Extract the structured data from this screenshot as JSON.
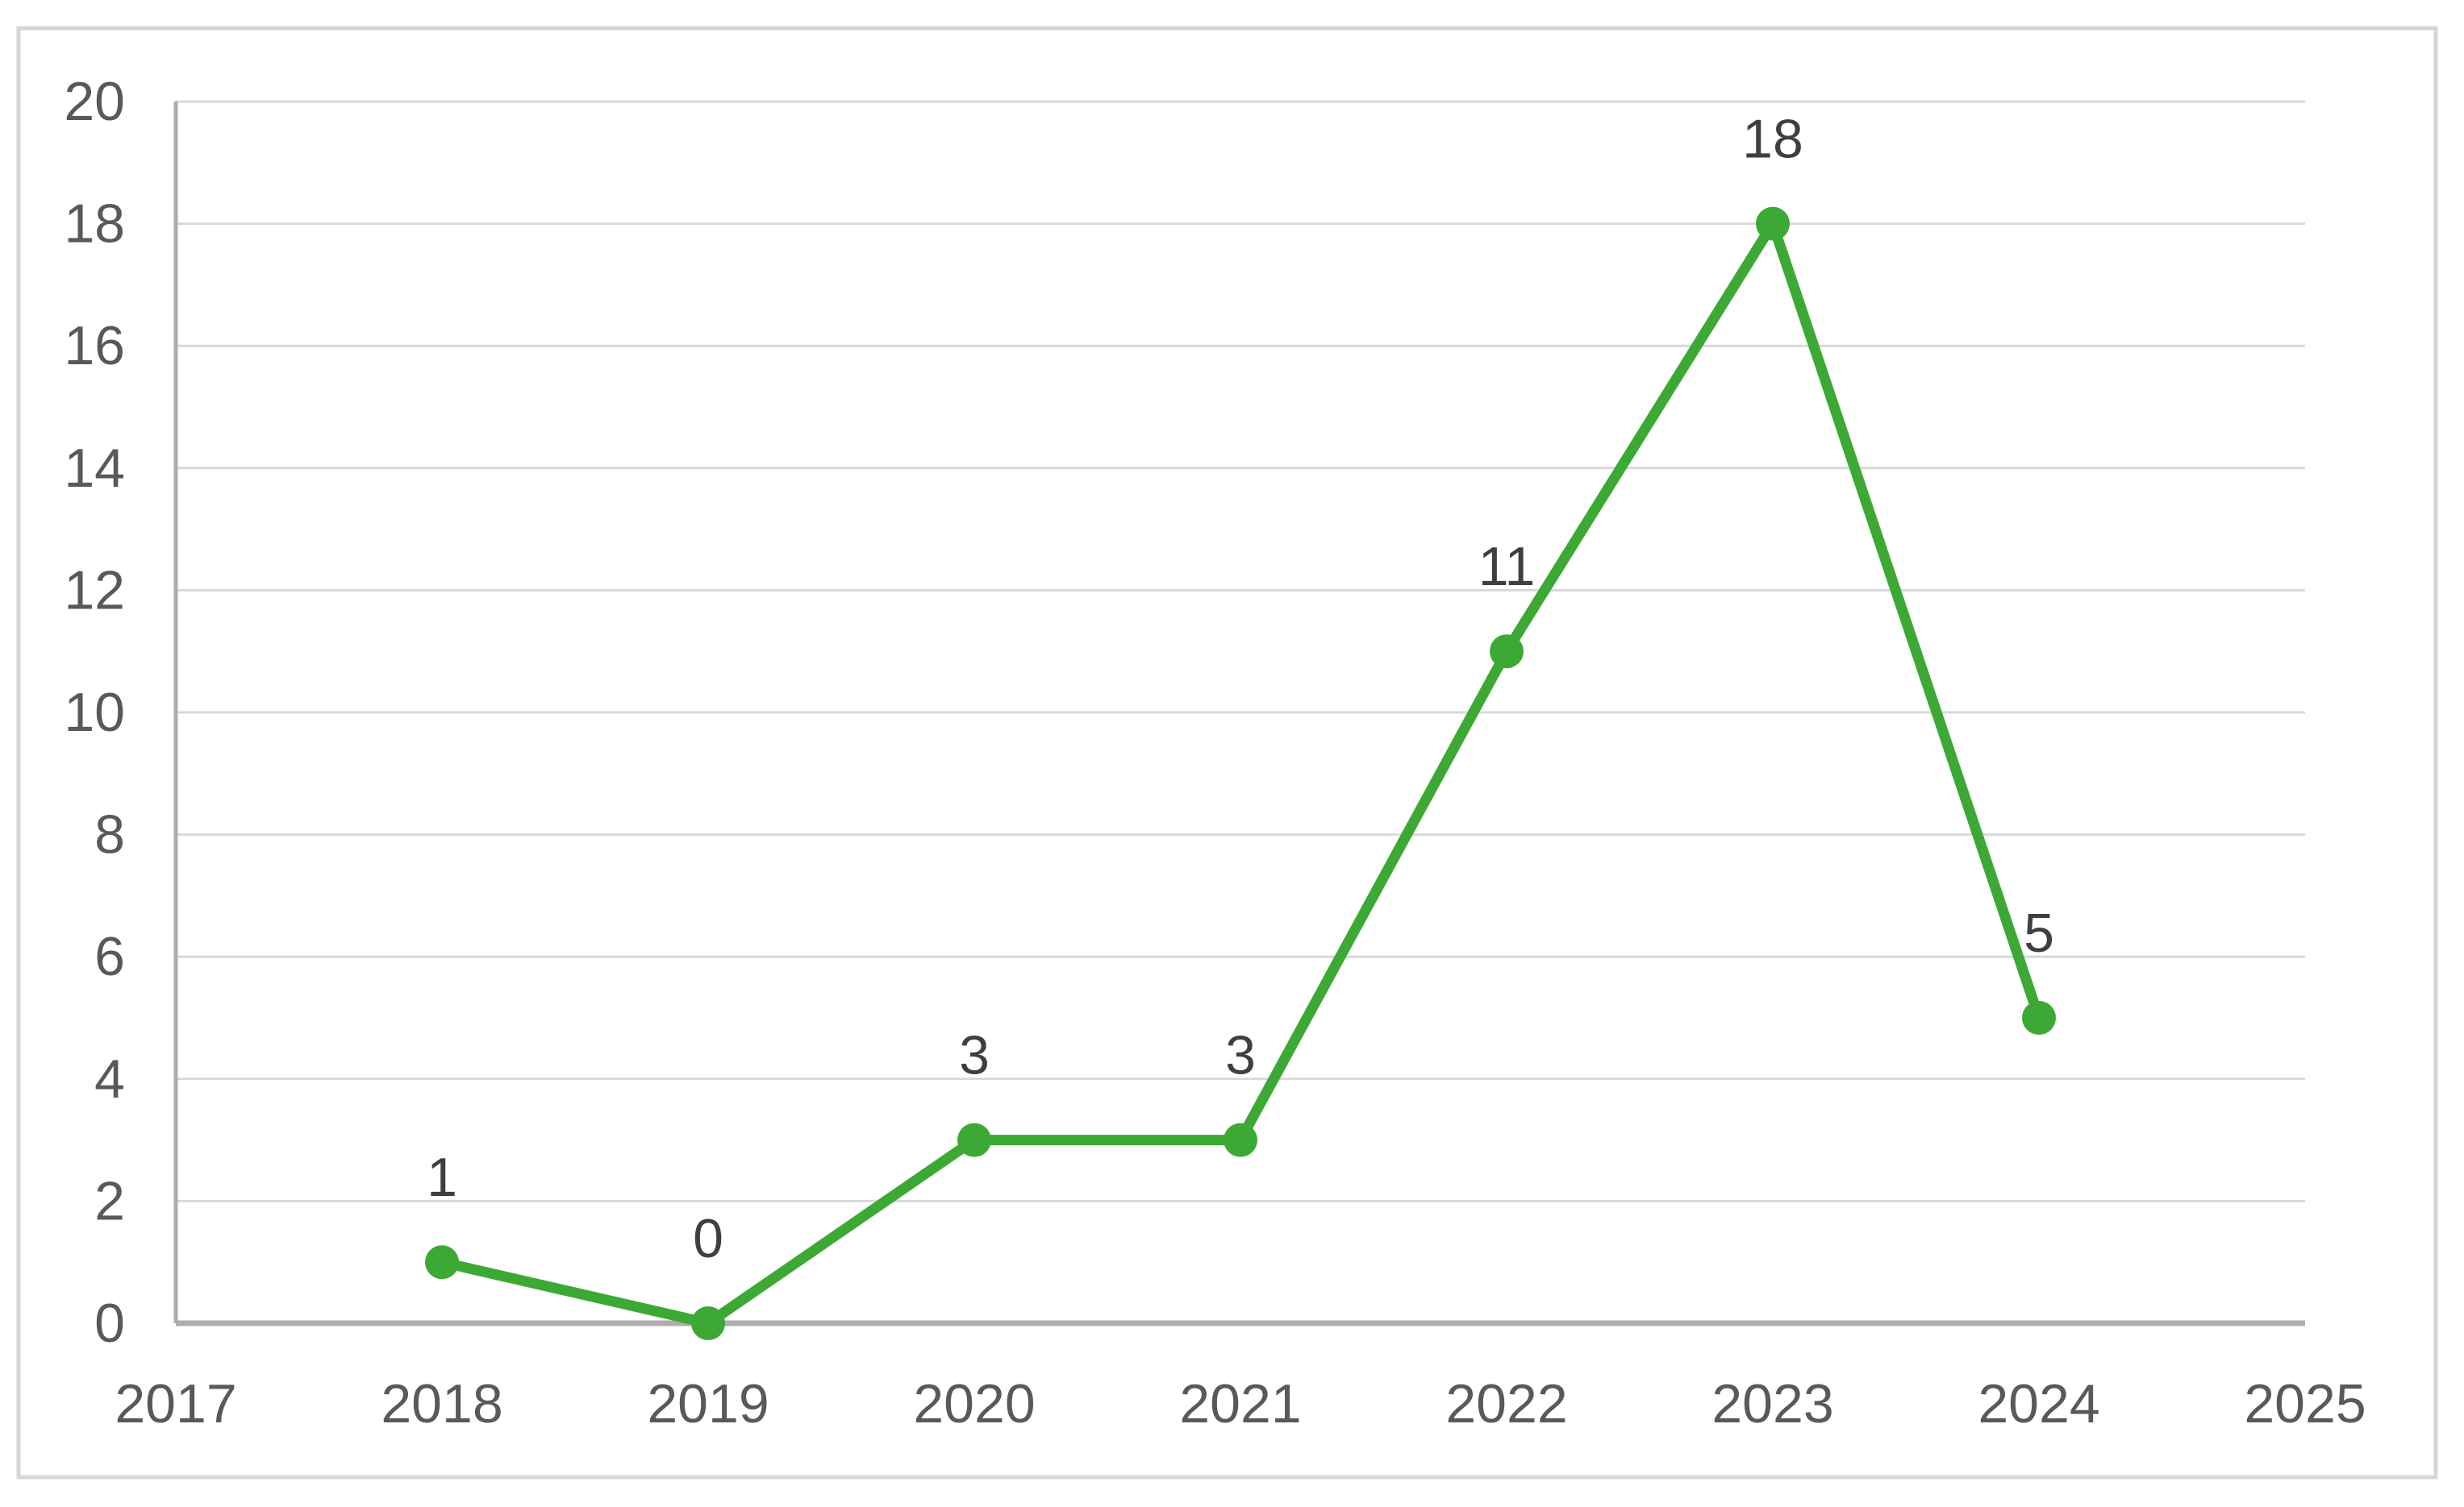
{
  "figure": {
    "background_color": "#FFFFFF",
    "border_color": "#D6D6D6"
  },
  "chart_data": {
    "type": "line",
    "title": "",
    "xlabel": "",
    "ylabel": "",
    "categories": [
      "2017",
      "2018",
      "2019",
      "2020",
      "2021",
      "2022",
      "2023",
      "2024",
      "2025"
    ],
    "series": [
      {
        "name": "series-1",
        "x": [
          "2018",
          "2019",
          "2020",
          "2021",
          "2022",
          "2023",
          "2024"
        ],
        "values": [
          1,
          0,
          3,
          3,
          11,
          18,
          5
        ],
        "data_labels": [
          "1",
          "0",
          "3",
          "3",
          "11",
          "18",
          "5"
        ],
        "line_color": "#3DA935",
        "marker": "circle",
        "marker_color": "#3DA935"
      }
    ],
    "ylim": [
      0,
      20
    ],
    "yticks": [
      0,
      2,
      4,
      6,
      8,
      10,
      12,
      14,
      16,
      18,
      20
    ],
    "grid": "horizontal",
    "legend_position": "none",
    "gridline_color": "#D9D9D9",
    "axis_line_color": "#ADADAD",
    "tick_label_color": "#595959",
    "data_label_color": "#3F3F3F"
  }
}
